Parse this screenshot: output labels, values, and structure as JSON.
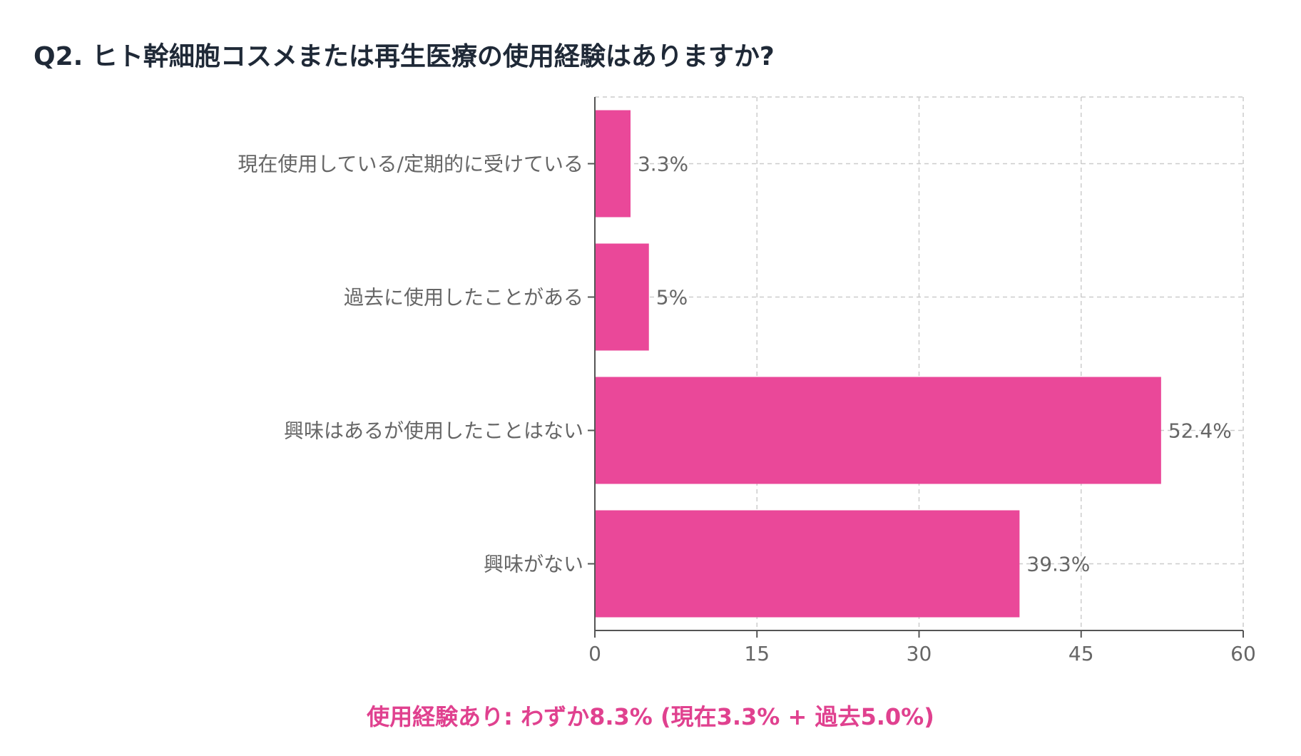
{
  "page": {
    "title": "Q2. ヒト幹細胞コスメまたは再生医療の使用経験はありますか?",
    "caption": "使用経験あり: わずか8.3% (現在3.3% + 過去5.0%)"
  },
  "colors": {
    "bar": "#ea4899",
    "caption": "#e0418f",
    "title": "#1f2937",
    "grid": "#cccccc",
    "axis": "#555555",
    "tick_text": "#666666"
  },
  "chart_data": {
    "type": "bar",
    "orientation": "horizontal",
    "title": "",
    "xlabel": "",
    "ylabel": "",
    "categories": [
      "現在使用している/定期的に受けている",
      "過去に使用したことがある",
      "興味はあるが使用したことはない",
      "興味がない"
    ],
    "values": [
      3.3,
      5,
      52.4,
      39.3
    ],
    "value_labels": [
      "3.3%",
      "5%",
      "52.4%",
      "39.3%"
    ],
    "xlim": [
      0,
      60
    ],
    "xticks": [
      0,
      15,
      30,
      45,
      60
    ],
    "grid": true,
    "legend": "none"
  }
}
